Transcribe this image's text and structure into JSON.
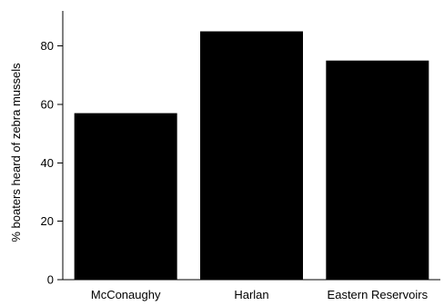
{
  "chart_data": {
    "type": "bar",
    "categories": [
      "McConaughy",
      "Harlan",
      "Eastern Reservoirs"
    ],
    "values": [
      57,
      85,
      75
    ],
    "title": "",
    "xlabel": "",
    "ylabel": "% boaters heard of zebra mussels",
    "ylim": [
      0,
      92
    ],
    "yticks": [
      0,
      20,
      40,
      60,
      80
    ],
    "grid": false,
    "bar_color": "#000000",
    "axis_color": "#000000"
  }
}
